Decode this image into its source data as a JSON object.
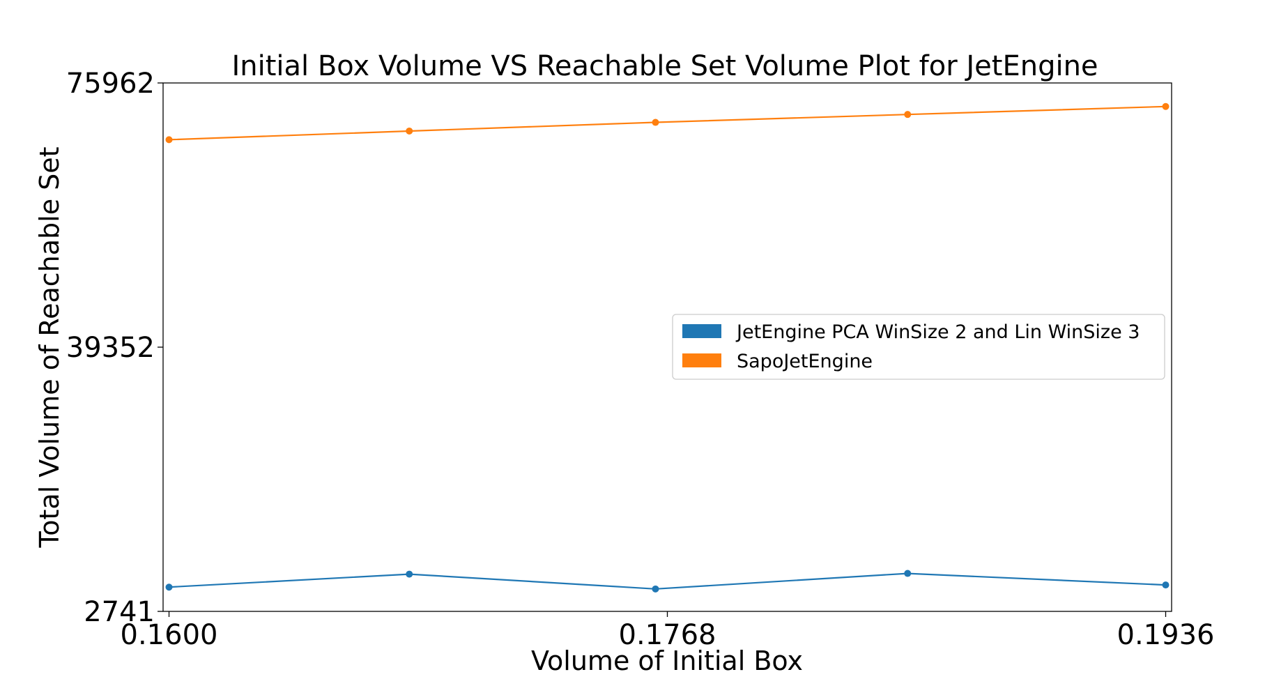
{
  "chart_data": {
    "type": "line",
    "title": "Initial Box Volume VS Reachable Set Volume Plot for JetEngine",
    "xlabel": "Volume of Initial Box",
    "ylabel": "Total Volume of Reachable Set",
    "x": [
      0.16,
      0.1681,
      0.1764,
      0.1849,
      0.1936
    ],
    "xlim": [
      0.1598,
      0.1938
    ],
    "ylim": [
      2741,
      75962
    ],
    "xticks": [
      0.16,
      0.1768,
      0.1936
    ],
    "xtick_labels": [
      "0.1600",
      "0.1768",
      "0.1936"
    ],
    "yticks": [
      2741,
      39352,
      75962
    ],
    "ytick_labels": [
      "2741",
      "39352",
      "75962"
    ],
    "grid": false,
    "legend_position": "center-right",
    "series": [
      {
        "name": "JetEngine PCA WinSize 2 and Lin WinSize 3",
        "color": "#1f77b4",
        "values": [
          6100,
          7900,
          5850,
          8000,
          6400
        ]
      },
      {
        "name": "SapoJetEngine",
        "color": "#ff7f0e",
        "values": [
          68100,
          69300,
          70500,
          71600,
          72700
        ]
      }
    ]
  }
}
